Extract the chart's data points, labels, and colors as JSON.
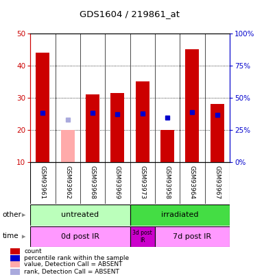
{
  "title": "GDS1604 / 219861_at",
  "samples": [
    "GSM93961",
    "GSM93962",
    "GSM93968",
    "GSM93969",
    "GSM93973",
    "GSM93958",
    "GSM93964",
    "GSM93967"
  ],
  "count_values": [
    44,
    20,
    31,
    31.5,
    35,
    20,
    45,
    28
  ],
  "count_absent": [
    false,
    true,
    false,
    false,
    false,
    false,
    false,
    false
  ],
  "rank_values": [
    38,
    33,
    38,
    37,
    37.5,
    34.5,
    38.5,
    36.5
  ],
  "rank_absent": [
    false,
    true,
    false,
    false,
    false,
    false,
    false,
    false
  ],
  "ylim_left": [
    10,
    50
  ],
  "ylim_right": [
    0,
    100
  ],
  "yticks_left": [
    10,
    20,
    30,
    40,
    50
  ],
  "yticks_right": [
    0,
    25,
    50,
    75,
    100
  ],
  "bar_color_present": "#cc0000",
  "bar_color_absent": "#ffaaaa",
  "rank_color_present": "#0000cc",
  "rank_color_absent": "#aaaadd",
  "bar_width": 0.55,
  "group_untreated_label": "untreated",
  "group_untreated_color": "#bbffbb",
  "group_irradiated_label": "irradiated",
  "group_irradiated_color": "#44dd44",
  "time_0d_label": "0d post IR",
  "time_0d_color": "#ff99ff",
  "time_3d_label": "3d post\nIR",
  "time_3d_color": "#cc00cc",
  "time_7d_label": "7d post IR",
  "time_7d_color": "#ff99ff",
  "legend_labels": [
    "count",
    "percentile rank within the sample",
    "value, Detection Call = ABSENT",
    "rank, Detection Call = ABSENT"
  ],
  "legend_colors": [
    "#cc0000",
    "#0000cc",
    "#ffaaaa",
    "#aaaadd"
  ],
  "other_label": "other",
  "time_label": "time",
  "background_color": "#ffffff",
  "xticklabel_bg": "#cccccc",
  "grid_dotted_at": [
    20,
    30,
    40
  ],
  "tick_color_left": "#cc0000",
  "tick_color_right": "#0000cc"
}
